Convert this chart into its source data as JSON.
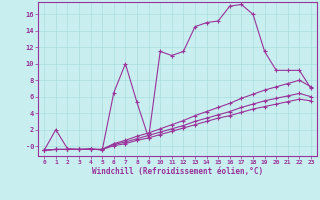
{
  "xlabel": "Windchill (Refroidissement éolien,°C)",
  "background_color": "#c8eef0",
  "line_color": "#993399",
  "grid_color": "#aadddd",
  "xlim": [
    -0.5,
    23.5
  ],
  "ylim": [
    -1.2,
    17.5
  ],
  "yticks": [
    0,
    2,
    4,
    6,
    8,
    10,
    12,
    14,
    16
  ],
  "ytick_labels": [
    "-0",
    "2",
    "4",
    "6",
    "8",
    "10",
    "12",
    "14",
    "16"
  ],
  "xticks": [
    0,
    1,
    2,
    3,
    4,
    5,
    6,
    7,
    8,
    9,
    10,
    11,
    12,
    13,
    14,
    15,
    16,
    17,
    18,
    19,
    20,
    21,
    22,
    23
  ],
  "series": [
    {
      "x": [
        0,
        1,
        2,
        3,
        4,
        5,
        6,
        7,
        8,
        9,
        10,
        11,
        12,
        13,
        14,
        15,
        16,
        17,
        18,
        19,
        20,
        21,
        22,
        23
      ],
      "y": [
        -0.5,
        2.0,
        -0.3,
        -0.4,
        -0.3,
        -0.5,
        6.5,
        10.0,
        5.3,
        1.0,
        11.5,
        11.0,
        11.5,
        14.5,
        15.0,
        15.2,
        17.0,
        17.2,
        16.0,
        11.5,
        9.2,
        9.2,
        9.2,
        7.0
      ],
      "marker": "+"
    },
    {
      "x": [
        0,
        1,
        2,
        3,
        4,
        5,
        6,
        7,
        8,
        9,
        10,
        11,
        12,
        13,
        14,
        15,
        16,
        17,
        18,
        19,
        20,
        21,
        22,
        23
      ],
      "y": [
        -0.5,
        -0.4,
        -0.4,
        -0.4,
        -0.4,
        -0.4,
        0.3,
        0.7,
        1.2,
        1.6,
        2.1,
        2.6,
        3.1,
        3.7,
        4.2,
        4.7,
        5.2,
        5.8,
        6.3,
        6.8,
        7.2,
        7.6,
        8.0,
        7.2
      ],
      "marker": "+"
    },
    {
      "x": [
        0,
        1,
        2,
        3,
        4,
        5,
        6,
        7,
        8,
        9,
        10,
        11,
        12,
        13,
        14,
        15,
        16,
        17,
        18,
        19,
        20,
        21,
        22,
        23
      ],
      "y": [
        -0.5,
        -0.4,
        -0.4,
        -0.4,
        -0.4,
        -0.4,
        0.2,
        0.5,
        0.9,
        1.3,
        1.7,
        2.1,
        2.5,
        3.0,
        3.4,
        3.8,
        4.2,
        4.7,
        5.1,
        5.5,
        5.8,
        6.1,
        6.4,
        6.0
      ],
      "marker": "+"
    },
    {
      "x": [
        0,
        1,
        2,
        3,
        4,
        5,
        6,
        7,
        8,
        9,
        10,
        11,
        12,
        13,
        14,
        15,
        16,
        17,
        18,
        19,
        20,
        21,
        22,
        23
      ],
      "y": [
        -0.5,
        -0.4,
        -0.4,
        -0.4,
        -0.4,
        -0.4,
        0.05,
        0.3,
        0.7,
        1.0,
        1.4,
        1.8,
        2.2,
        2.6,
        3.0,
        3.4,
        3.7,
        4.1,
        4.5,
        4.8,
        5.1,
        5.4,
        5.7,
        5.5
      ],
      "marker": "+"
    }
  ]
}
